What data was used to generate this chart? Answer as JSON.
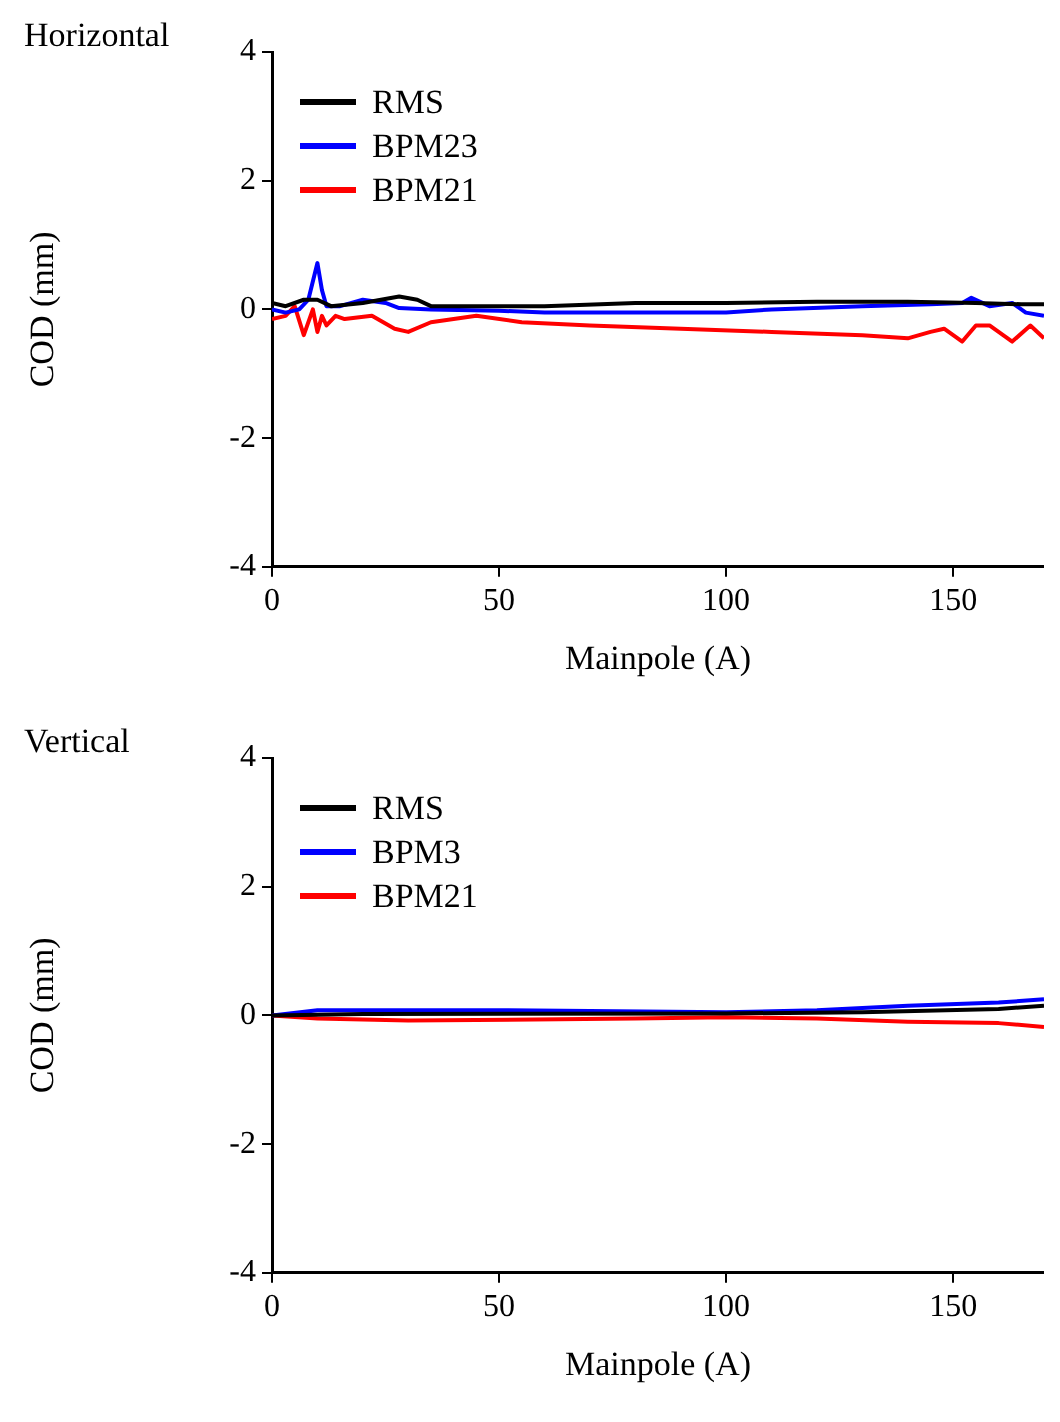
{
  "chart_data": [
    {
      "type": "line",
      "title": "Horizontal",
      "xlabel": "Mainpole (A)",
      "ylabel": "COD (mm)",
      "xlim": [
        0,
        170
      ],
      "xticks": [
        0,
        50,
        100,
        150
      ],
      "ylim": [
        -4,
        4
      ],
      "yticks": [
        -4,
        -2,
        0,
        2,
        4
      ],
      "grid": false,
      "legend": "top left",
      "marker": "none",
      "line_style": "solid",
      "series": [
        {
          "name": "RMS",
          "color": "#000000",
          "x": [
            0,
            3,
            7,
            10,
            13,
            20,
            28,
            32,
            35,
            45,
            60,
            80,
            100,
            120,
            140,
            155,
            165,
            170
          ],
          "values": [
            0.1,
            0.05,
            0.15,
            0.15,
            0.05,
            0.1,
            0.2,
            0.15,
            0.05,
            0.05,
            0.05,
            0.1,
            0.1,
            0.12,
            0.12,
            0.1,
            0.08,
            0.08
          ]
        },
        {
          "name": "BPM23",
          "color": "#0000ff",
          "x": [
            0,
            3,
            6,
            8,
            10,
            11,
            12,
            15,
            20,
            25,
            28,
            35,
            50,
            60,
            75,
            100,
            110,
            130,
            145,
            152,
            154,
            158,
            163,
            166,
            170
          ],
          "values": [
            0,
            -0.05,
            0,
            0.15,
            0.72,
            0.3,
            0.05,
            0.05,
            0.15,
            0.1,
            0.02,
            0,
            -0.02,
            -0.05,
            -0.05,
            -0.05,
            0,
            0.05,
            0.08,
            0.1,
            0.18,
            0.05,
            0.1,
            -0.05,
            -0.1
          ]
        },
        {
          "name": "BPM21",
          "color": "#ff0000",
          "x": [
            0,
            3,
            5,
            7,
            9,
            10,
            11,
            12,
            14,
            16,
            22,
            27,
            30,
            35,
            40,
            45,
            55,
            70,
            90,
            110,
            130,
            140,
            145,
            148,
            152,
            155,
            158,
            163,
            167,
            170
          ],
          "values": [
            -0.15,
            -0.1,
            0.05,
            -0.4,
            0,
            -0.35,
            -0.1,
            -0.25,
            -0.1,
            -0.15,
            -0.1,
            -0.3,
            -0.35,
            -0.2,
            -0.15,
            -0.1,
            -0.2,
            -0.25,
            -0.3,
            -0.35,
            -0.4,
            -0.45,
            -0.35,
            -0.3,
            -0.5,
            -0.25,
            -0.25,
            -0.5,
            -0.25,
            -0.45
          ]
        }
      ]
    },
    {
      "type": "line",
      "title": "Vertical",
      "xlabel": "Mainpole (A)",
      "ylabel": "COD (mm)",
      "xlim": [
        0,
        170
      ],
      "xticks": [
        0,
        50,
        100,
        150
      ],
      "ylim": [
        -4,
        4
      ],
      "yticks": [
        -4,
        -2,
        0,
        2,
        4
      ],
      "grid": false,
      "legend": "top left",
      "marker": "none",
      "line_style": "solid",
      "series": [
        {
          "name": "RMS",
          "color": "#000000",
          "x": [
            0,
            20,
            100,
            130,
            160,
            170
          ],
          "values": [
            0,
            0.02,
            0.03,
            0.05,
            0.1,
            0.15
          ]
        },
        {
          "name": "BPM3",
          "color": "#0000ff",
          "x": [
            0,
            10,
            50,
            100,
            120,
            140,
            160,
            170
          ],
          "values": [
            0,
            0.08,
            0.08,
            0.05,
            0.08,
            0.15,
            0.2,
            0.25
          ]
        },
        {
          "name": "BPM21",
          "color": "#ff0000",
          "x": [
            0,
            10,
            30,
            80,
            100,
            120,
            140,
            160,
            170
          ],
          "values": [
            0,
            -0.05,
            -0.08,
            -0.05,
            -0.03,
            -0.05,
            -0.1,
            -0.12,
            -0.18
          ]
        }
      ]
    }
  ]
}
